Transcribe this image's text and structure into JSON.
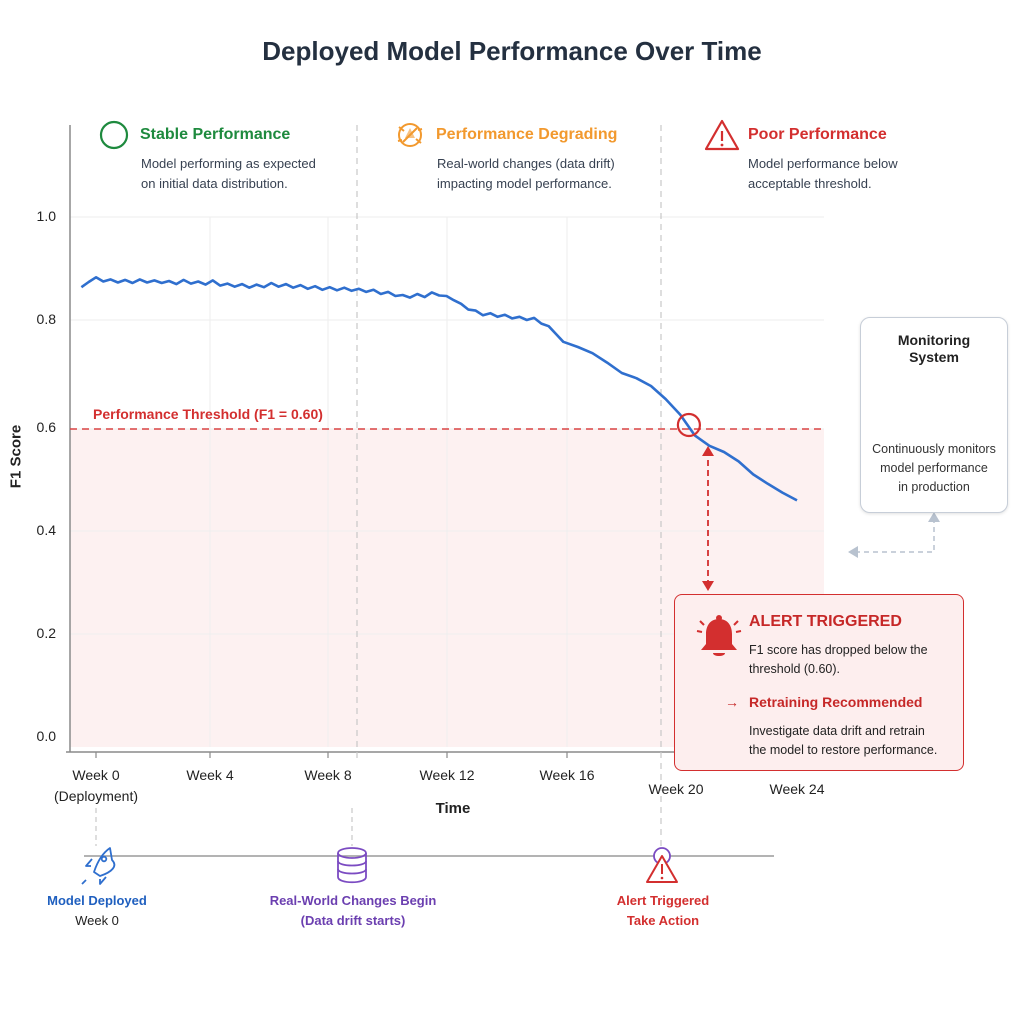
{
  "title": "Deployed Model Performance Over Time",
  "phases": [
    {
      "title": "Stable Performance",
      "desc_line1": "Model performing as expected",
      "desc_line2": "on initial data distribution.",
      "color": "#1e8a3e",
      "icon": "circle-icon"
    },
    {
      "title": "Performance Degrading",
      "desc_line1": "Real-world changes (data drift)",
      "desc_line2": "impacting model performance.",
      "color": "#f2992e",
      "icon": "warning-circle-icon"
    },
    {
      "title": "Poor Performance",
      "desc_line1": "Model performance below",
      "desc_line2": "acceptable threshold.",
      "color": "#d32f2f",
      "icon": "warning-triangle-icon"
    }
  ],
  "chart_data": {
    "type": "line",
    "title": "Deployed Model Performance Over Time",
    "xlabel": "Time",
    "ylabel": "F1 Score",
    "ylim": [
      0.0,
      1.0
    ],
    "xlim": [
      -0.5,
      24
    ],
    "y_ticks": [
      "0.0",
      "0.2",
      "0.4",
      "0.6",
      "0.8",
      "1.0"
    ],
    "x_ticks": [
      {
        "label": "Week 0",
        "sub": "(Deployment)"
      },
      {
        "label": "Week 4",
        "sub": ""
      },
      {
        "label": "Week 8",
        "sub": ""
      },
      {
        "label": "Week 12",
        "sub": ""
      },
      {
        "label": "Week 16",
        "sub": ""
      },
      {
        "label": "Week 20",
        "sub": ""
      },
      {
        "label": "Week 24",
        "sub": ""
      }
    ],
    "grid": true,
    "threshold": {
      "value": 0.6,
      "label": "Performance Threshold (F1 = 0.60)"
    },
    "series": [
      {
        "color": "#2f6fce",
        "x": [
          -0.5,
          -0.25,
          0,
          0.25,
          0.5,
          0.75,
          1,
          1.25,
          1.5,
          1.75,
          2,
          2.25,
          2.5,
          2.75,
          3,
          3.25,
          3.5,
          3.75,
          4,
          4.25,
          4.5,
          4.75,
          5,
          5.25,
          5.5,
          5.75,
          6,
          6.25,
          6.5,
          6.75,
          7,
          7.25,
          7.5,
          7.75,
          8,
          8.25,
          8.5,
          8.75,
          9,
          9.25,
          9.5,
          9.75,
          10,
          10.25,
          10.5,
          10.75,
          11,
          11.25,
          11.5,
          11.75,
          12,
          12.25,
          12.5,
          12.75,
          13,
          13.25,
          13.5,
          13.75,
          14,
          14.25,
          14.5,
          14.75,
          15,
          15.25,
          15.5,
          15.75,
          16,
          16.5,
          17,
          17.5,
          18,
          18.5,
          19,
          19.5,
          20,
          20.5,
          21,
          21.5,
          22,
          22.5,
          23,
          23.5,
          24
        ],
        "y": [
          0.865,
          0.875,
          0.884,
          0.876,
          0.88,
          0.874,
          0.879,
          0.873,
          0.88,
          0.874,
          0.878,
          0.873,
          0.877,
          0.871,
          0.879,
          0.872,
          0.876,
          0.87,
          0.878,
          0.868,
          0.872,
          0.866,
          0.871,
          0.864,
          0.87,
          0.865,
          0.873,
          0.866,
          0.871,
          0.864,
          0.869,
          0.862,
          0.867,
          0.86,
          0.865,
          0.859,
          0.864,
          0.858,
          0.862,
          0.856,
          0.86,
          0.852,
          0.856,
          0.848,
          0.85,
          0.845,
          0.852,
          0.846,
          0.855,
          0.849,
          0.848,
          0.84,
          0.833,
          0.822,
          0.82,
          0.811,
          0.815,
          0.808,
          0.812,
          0.805,
          0.808,
          0.802,
          0.806,
          0.795,
          0.79,
          0.775,
          0.76,
          0.75,
          0.738,
          0.72,
          0.7,
          0.69,
          0.675,
          0.65,
          0.62,
          0.58,
          0.56,
          0.548,
          0.53,
          0.505,
          0.487,
          0.47,
          0.455
        ]
      }
    ],
    "alert_point": {
      "x": 20.3,
      "y": 0.6
    }
  },
  "monitoring": {
    "title_line1": "Monitoring",
    "title_line2": "System",
    "desc_line1": "Continuously monitors",
    "desc_line2": "model performance",
    "desc_line3": "in production",
    "icon": "monitor-chart-icon"
  },
  "alert": {
    "title": "ALERT TRIGGERED",
    "desc_line1": "F1 score has dropped below the",
    "desc_line2": "threshold (0.60).",
    "arrow": "→",
    "sub_title": "Retraining Recommended",
    "action_line1": "Investigate data drift and retrain",
    "action_line2": "the model to restore performance.",
    "icon": "bell-icon"
  },
  "timeline": [
    {
      "label": "Model Deployed",
      "sub": "Week 0",
      "label_color": "#1f5fbf",
      "sub_color": "#222222",
      "icon": "rocket-icon"
    },
    {
      "label": "Real-World Changes Begin",
      "sub": "(Data drift starts)",
      "label_color": "#6b3fb0",
      "sub_color": "#6b3fb0",
      "icon": "database-icon"
    },
    {
      "label": "Alert Triggered",
      "sub": "Take Action",
      "label_color": "#d32f2f",
      "sub_color": "#d32f2f",
      "icon": "warning-triangle-icon"
    }
  ]
}
